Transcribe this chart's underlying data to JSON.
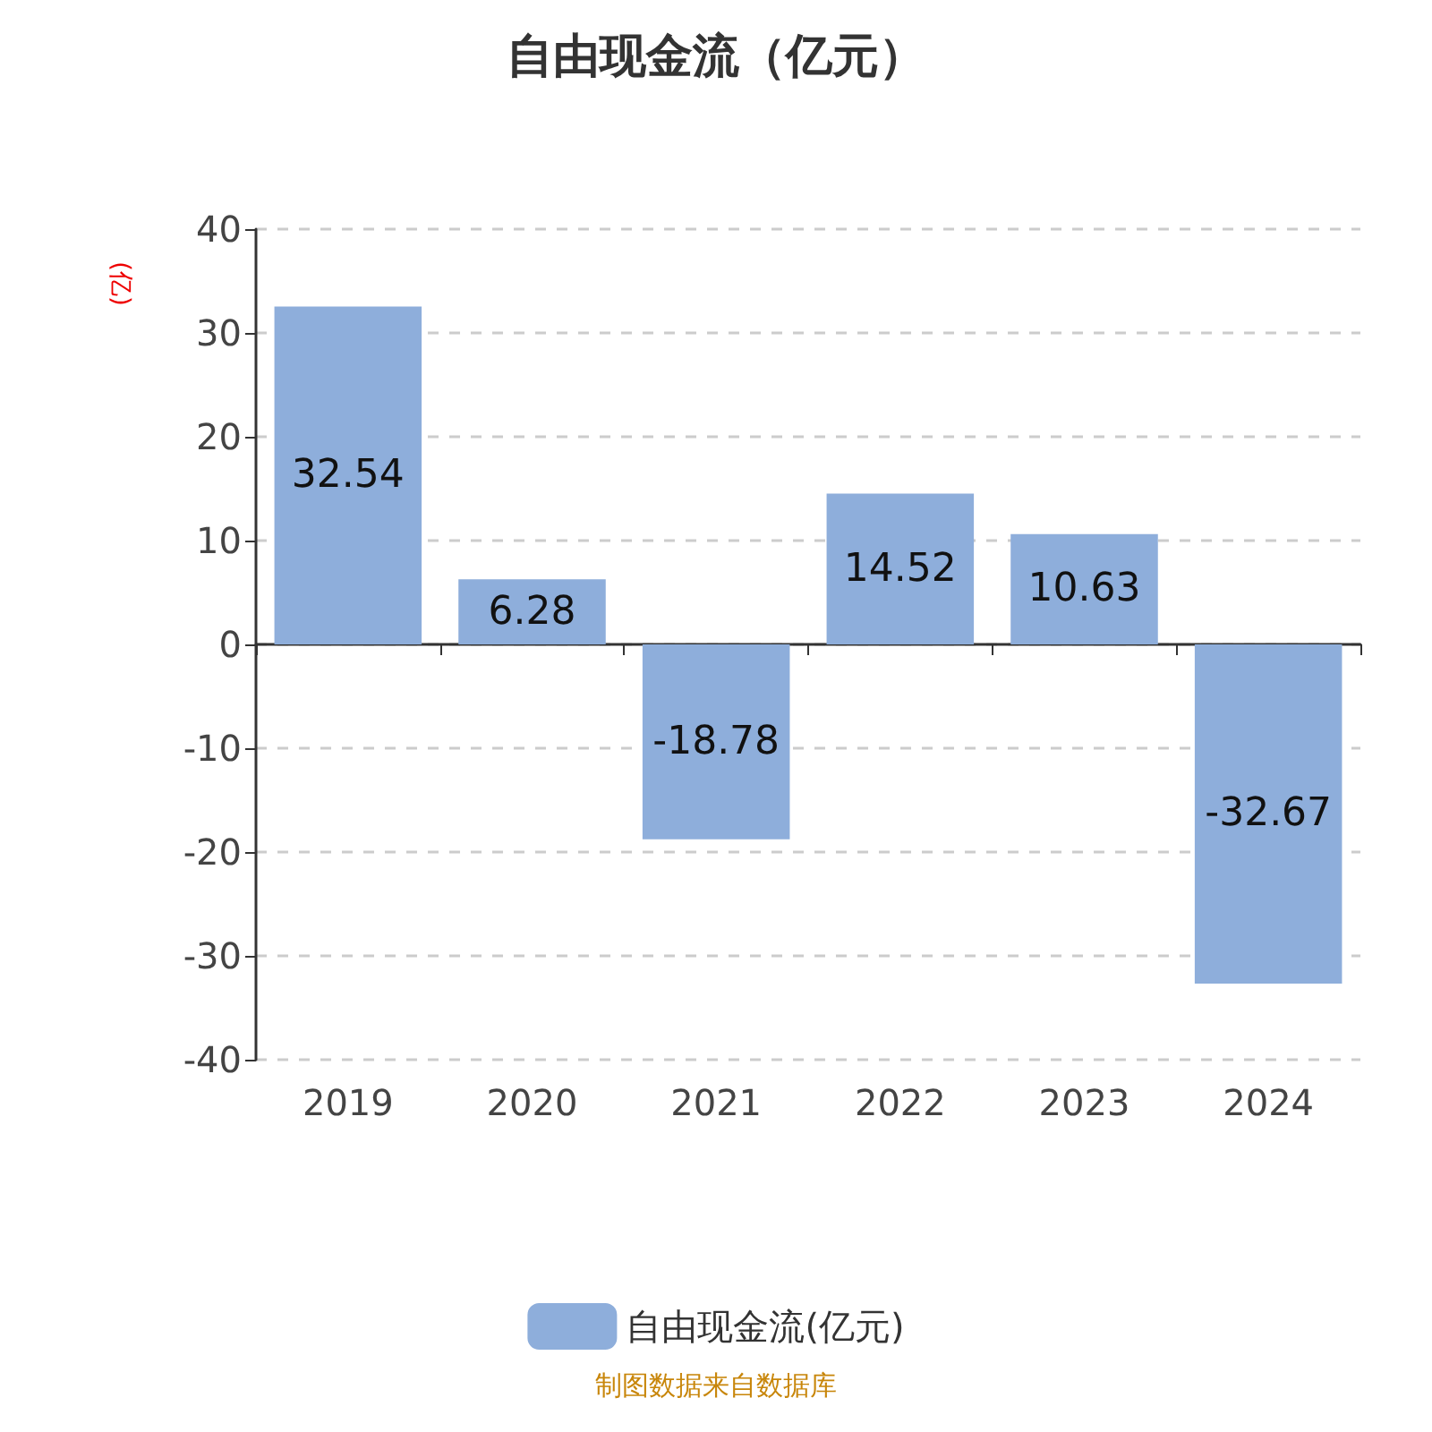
{
  "chart_data": {
    "type": "bar",
    "title": "自由现金流（亿元）",
    "ylabel": "(亿)",
    "categories": [
      "2019",
      "2020",
      "2021",
      "2022",
      "2023",
      "2024"
    ],
    "series": [
      {
        "name": "自由现金流(亿元)",
        "color": "#8eaedb",
        "values": [
          32.54,
          6.28,
          -18.78,
          14.52,
          10.63,
          -32.67
        ]
      }
    ],
    "ylim": [
      -40,
      40
    ],
    "yticks": [
      -40,
      -30,
      -20,
      -10,
      0,
      10,
      20,
      30,
      40
    ],
    "grid": "y",
    "legend": "bottom",
    "data_labels": true,
    "annotations": [
      "制图数据来自数据库"
    ]
  }
}
